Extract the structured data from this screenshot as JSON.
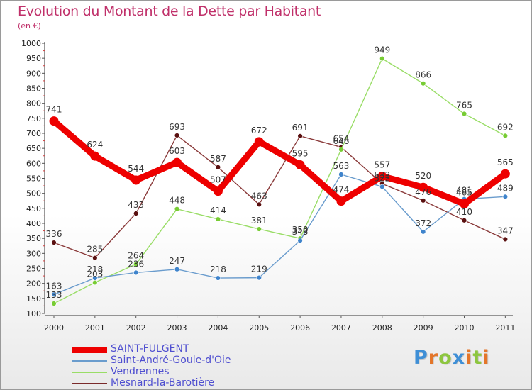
{
  "title": "Evolution du Montant de la Dette par Habitant",
  "subtitle": "(en €)",
  "logo": {
    "text": "Proxiti",
    "letters": [
      {
        "ch": "P",
        "color": "#3f8fd6"
      },
      {
        "ch": "r",
        "color": "#e4762a"
      },
      {
        "ch": "o",
        "color": "#8dc63f"
      },
      {
        "ch": "x",
        "color": "#3f8fd6"
      },
      {
        "ch": "i",
        "color": "#e4762a"
      },
      {
        "ch": "t",
        "color": "#8dc63f"
      },
      {
        "ch": "i",
        "color": "#e4762a"
      }
    ]
  },
  "legend": [
    {
      "label": "SAINT-FULGENT",
      "color": "#ee0000",
      "weight": "thick"
    },
    {
      "label": "Saint-André-Goule-d'Oie",
      "color": "#6a9ccd",
      "weight": "thin"
    },
    {
      "label": "Vendrennes",
      "color": "#99dd66",
      "weight": "thin"
    },
    {
      "label": "Mesnard-la-Barotière",
      "color": "#7a2a2a",
      "weight": "thin"
    }
  ],
  "chart_data": {
    "type": "line",
    "title": "Evolution du Montant de la Dette par Habitant",
    "subtitle": "(en €)",
    "categories": [
      "2000",
      "2001",
      "2002",
      "2003",
      "2004",
      "2005",
      "2006",
      "2007",
      "2008",
      "2009",
      "2010",
      "2011"
    ],
    "ylim": [
      100,
      1000
    ],
    "y_ticks": [
      "100",
      "150",
      "200",
      "250",
      "300",
      "350",
      "400",
      "450",
      "500",
      "550",
      "600",
      "650",
      "700",
      "750",
      "800",
      "850",
      "900",
      "950",
      "1000"
    ],
    "grid": "none",
    "legend_position": "bottom-left",
    "series": [
      {
        "name": "SAINT-FULGENT",
        "color": "#ee0000",
        "line_color": "#ee0000",
        "marker_color": "#ee0000",
        "style": "thick",
        "values": [
          741,
          624,
          544,
          603,
          507,
          672,
          595,
          474,
          557,
          520,
          465,
          565
        ]
      },
      {
        "name": "Saint-André-Goule-d'Oie",
        "color": "#6a9ccd",
        "line_color": "#6a9ccd",
        "marker_color": "#3f84cc",
        "style": "thin",
        "values": [
          163,
          218,
          236,
          247,
          218,
          219,
          343,
          563,
          522,
          372,
          481,
          489
        ]
      },
      {
        "name": "Vendrennes",
        "color": "#99dd66",
        "line_color": "#99dd66",
        "marker_color": "#77cc33",
        "style": "thin",
        "values": [
          133,
          203,
          264,
          448,
          414,
          381,
          350,
          646,
          949,
          866,
          765,
          692
        ]
      },
      {
        "name": "Mesnard-la-Barotière",
        "color": "#7a2a2a",
        "line_color": "#8a3a3a",
        "marker_color": "#5a1010",
        "style": "thin",
        "values": [
          336,
          285,
          433,
          693,
          587,
          463,
          691,
          654,
          532,
          476,
          410,
          347
        ]
      }
    ]
  }
}
